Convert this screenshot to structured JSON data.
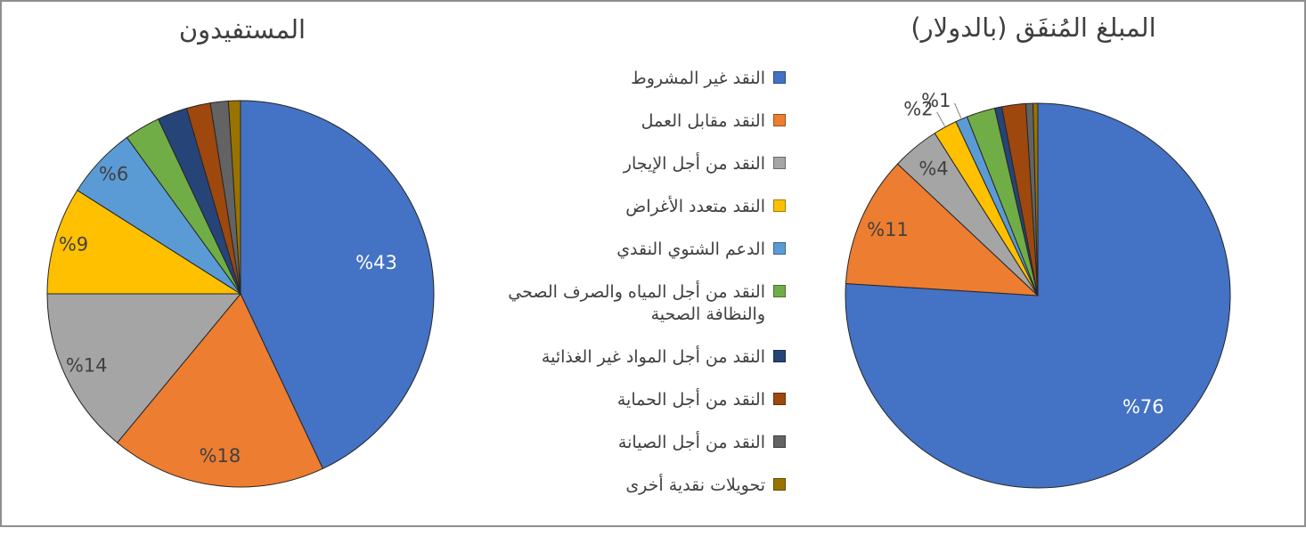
{
  "legend": {
    "items": [
      {
        "label": "النقد غير المشروط",
        "color": "#4472C4"
      },
      {
        "label": "النقد مقابل العمل",
        "color": "#ED7D31"
      },
      {
        "label": "النقد من أجل الإيجار",
        "color": "#A5A5A5"
      },
      {
        "label": "النقد متعدد الأغراض",
        "color": "#FFC000"
      },
      {
        "label": "الدعم الشتوي النقدي",
        "color": "#5B9BD5"
      },
      {
        "label": "النقد من أجل المياه والصرف الصحي\nوالنظافة الصحية",
        "color": "#70AD47"
      },
      {
        "label": "النقد من أجل المواد غير الغذائية",
        "color": "#264478"
      },
      {
        "label": "النقد من أجل الحماية",
        "color": "#9E480E"
      },
      {
        "label": "النقد من أجل الصيانة",
        "color": "#636363"
      },
      {
        "label": "تحويلات نقدية أخرى",
        "color": "#997300"
      }
    ]
  },
  "chart_data": [
    {
      "type": "pie",
      "title": "المبلغ المُنفَق (بالدولار)",
      "legend_position": "shared-center",
      "slices": [
        {
          "category": "النقد غير المشروط",
          "value": 76,
          "color": "#4472C4",
          "label": "%76",
          "label_color": "#FFFFFF",
          "label_r": 0.8
        },
        {
          "category": "النقد مقابل العمل",
          "value": 11,
          "color": "#ED7D31",
          "label": "%11",
          "label_color": "#404040",
          "label_r": 0.85
        },
        {
          "category": "النقد من أجل الإيجار",
          "value": 4,
          "color": "#A5A5A5",
          "label": "%4",
          "label_color": "#404040",
          "label_r": 0.85
        },
        {
          "category": "النقد متعدد الأغراض",
          "value": 2,
          "color": "#FFC000",
          "label": "%2",
          "label_color": "#404040",
          "label_pos": "outside"
        },
        {
          "category": "الدعم الشتوي النقدي",
          "value": 1,
          "color": "#5B9BD5",
          "label": "%1",
          "label_color": "#404040",
          "label_pos": "outside"
        },
        {
          "category": "النقد من أجل المياه والصرف الصحي والنظافة الصحية",
          "value": 2.4,
          "color": "#70AD47"
        },
        {
          "category": "النقد من أجل المواد غير الغذائية",
          "value": 0.6,
          "color": "#264478"
        },
        {
          "category": "النقد من أجل الحماية",
          "value": 2,
          "color": "#9E480E"
        },
        {
          "category": "النقد من أجل الصيانة",
          "value": 0.6,
          "color": "#636363"
        },
        {
          "category": "تحويلات نقدية أخرى",
          "value": 0.4,
          "color": "#997300"
        }
      ]
    },
    {
      "type": "pie",
      "title": "المستفيدون",
      "legend_position": "shared-center",
      "slices": [
        {
          "category": "النقد غير المشروط",
          "value": 43,
          "color": "#4472C4",
          "label": "%43",
          "label_color": "#FFFFFF",
          "label_r": 0.72
        },
        {
          "category": "النقد مقابل العمل",
          "value": 18,
          "color": "#ED7D31",
          "label": "%18",
          "label_color": "#404040",
          "label_r": 0.85
        },
        {
          "category": "النقد من أجل الإيجار",
          "value": 14,
          "color": "#A5A5A5",
          "label": "%14",
          "label_color": "#404040",
          "label_r": 0.88
        },
        {
          "category": "النقد متعدد الأغراض",
          "value": 9,
          "color": "#FFC000",
          "label": "%9",
          "label_color": "#404040",
          "label_r": 0.9
        },
        {
          "category": "الدعم الشتوي النقدي",
          "value": 6,
          "color": "#5B9BD5",
          "label": "%6",
          "label_color": "#404040",
          "label_r": 0.9
        },
        {
          "category": "النقد من أجل المياه والصرف الصحي والنظافة الصحية",
          "value": 3,
          "color": "#70AD47"
        },
        {
          "category": "النقد من أجل المواد غير الغذائية",
          "value": 2.5,
          "color": "#264478"
        },
        {
          "category": "النقد من أجل الحماية",
          "value": 2,
          "color": "#9E480E"
        },
        {
          "category": "النقد من أجل الصيانة",
          "value": 1.5,
          "color": "#636363"
        },
        {
          "category": "تحويلات نقدية أخرى",
          "value": 1,
          "color": "#997300"
        }
      ]
    }
  ]
}
